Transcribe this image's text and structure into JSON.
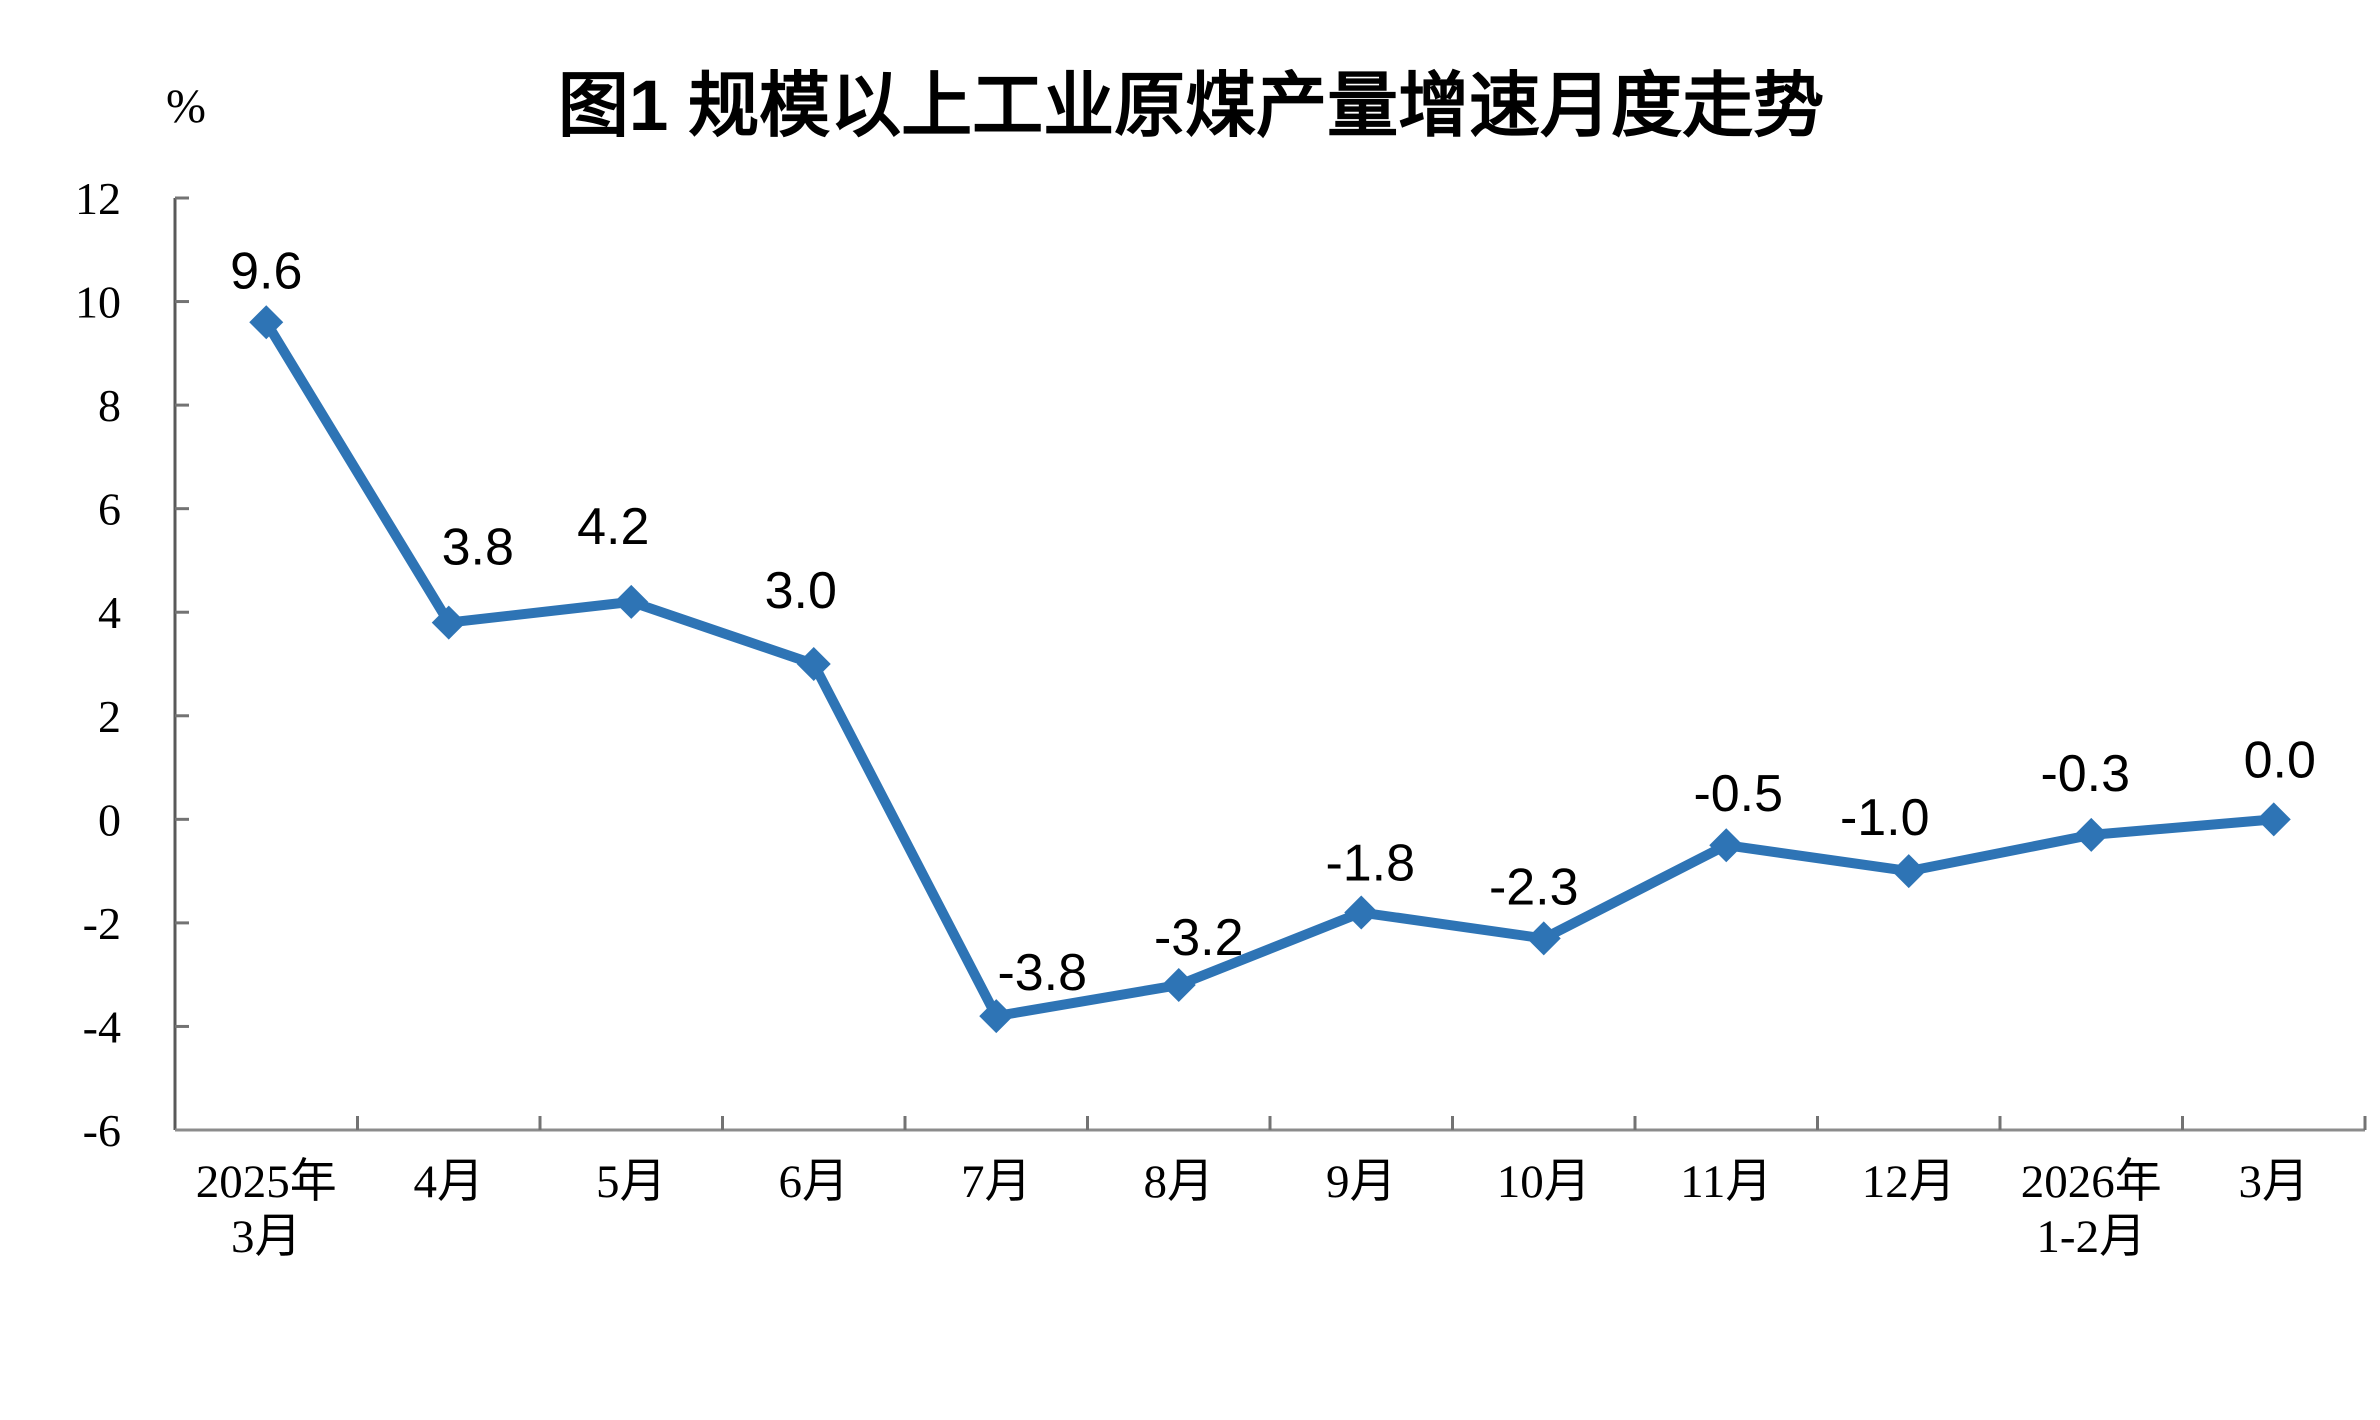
{
  "chart_data": {
    "type": "line",
    "title": "图1  规模以上工业原煤产量增速月度走势",
    "unit_label": "%",
    "categories": [
      [
        "2025年",
        "3月"
      ],
      [
        "4月"
      ],
      [
        "5月"
      ],
      [
        "6月"
      ],
      [
        "7月"
      ],
      [
        "8月"
      ],
      [
        "9月"
      ],
      [
        "10月"
      ],
      [
        "11月"
      ],
      [
        "12月"
      ],
      [
        "2026年",
        "1-2月"
      ],
      [
        "3月"
      ]
    ],
    "values": [
      9.6,
      3.8,
      4.2,
      3.0,
      -3.8,
      -3.2,
      -1.8,
      -2.3,
      -0.5,
      -1.0,
      -0.3,
      0.0
    ],
    "data_labels": [
      "9.6",
      "3.8",
      "4.2",
      "3.0",
      "-3.8",
      "-3.2",
      "-1.8",
      "-2.3",
      "-0.5",
      "-1.0",
      "-0.3",
      "0.0"
    ],
    "yticks": [
      12,
      10,
      8,
      6,
      4,
      2,
      0,
      -2,
      -4,
      -6
    ],
    "ylim": [
      -6,
      12
    ],
    "xlabel": "",
    "ylabel": "%",
    "grid": false,
    "legend": "none",
    "line_color": "#2E74B5",
    "marker": "diamond",
    "x_axis_color": "#8C8C8C",
    "y_axis_color": "#595959",
    "tick_color": "#737373",
    "text_color": "#000000"
  }
}
